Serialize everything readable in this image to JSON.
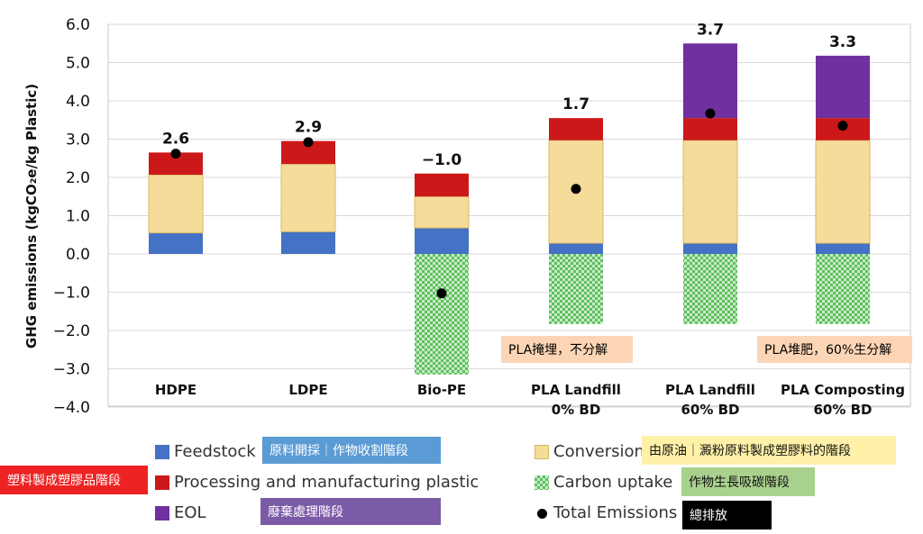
{
  "chart_data": {
    "type": "bar",
    "stacked": true,
    "ylabel": "GHG emissions (kgCO₂e/kg Plastic)",
    "ylim": [
      -4.0,
      6.0
    ],
    "yticks": [
      "6.0",
      "5.0",
      "4.0",
      "3.0",
      "2.0",
      "1.0",
      "0.0",
      "−1.0",
      "−2.0",
      "−3.0",
      "−4.0"
    ],
    "ytick_values": [
      6,
      5,
      4,
      3,
      2,
      1,
      0,
      -1,
      -2,
      -3,
      -4
    ],
    "grid": true,
    "categories": [
      [
        "HDPE"
      ],
      [
        "LDPE"
      ],
      [
        "Bio-PE"
      ],
      [
        "PLA Landfill",
        "0% BD"
      ],
      [
        "PLA Landfill",
        "60% BD"
      ],
      [
        "PLA Composting",
        "60% BD"
      ]
    ],
    "series": [
      {
        "name": "Feedstock",
        "color": "#4472c4",
        "values": [
          0.55,
          0.58,
          0.68,
          0.28,
          0.28,
          0.28
        ]
      },
      {
        "name": "Conversion",
        "color": "#f6dc9b",
        "values": [
          1.52,
          1.77,
          0.82,
          2.69,
          2.69,
          2.69
        ]
      },
      {
        "name": "Processing and manufacturing plastic",
        "color": "#cc1818",
        "values": [
          0.58,
          0.6,
          0.6,
          0.58,
          0.58,
          0.58
        ]
      },
      {
        "name": "EOL",
        "color": "#7030a0",
        "values": [
          0,
          0,
          0,
          0,
          1.95,
          1.63
        ]
      },
      {
        "name": "Carbon uptake",
        "color": "#5fbf5f",
        "pattern": "checker",
        "values": [
          0,
          0,
          -3.15,
          -1.83,
          -1.83,
          -1.83
        ]
      }
    ],
    "total_emissions": [
      2.62,
      2.92,
      -1.03,
      1.7,
      3.67,
      3.35
    ],
    "total_labels": [
      "2.6",
      "2.9",
      "−1.0",
      "1.7",
      "3.7",
      "3.3"
    ]
  },
  "legend": [
    {
      "name": "Feedstock",
      "icon": "blue-square",
      "color": "#4472c4"
    },
    {
      "name": "Processing and manufacturing plastic",
      "icon": "red-square",
      "color": "#cc1818"
    },
    {
      "name": "EOL",
      "icon": "purple-square",
      "color": "#7030a0"
    },
    {
      "name": "Conversion",
      "icon": "yellow-square",
      "color": "#f6dc9b"
    },
    {
      "name": "Carbon uptake",
      "icon": "green-checker-square",
      "color": "#5fbf5f"
    },
    {
      "name": "Total Emissions",
      "icon": "black-dot",
      "color": "#000000"
    }
  ],
  "notes": {
    "feedstock": "原料開採｜作物收割階段",
    "processing": "塑料製成塑膠品階段",
    "eol": "廢棄處理階段",
    "conversion": "由原油｜澱粉原料製成塑膠料的階段",
    "carbon_uptake": "作物生長吸碳階段",
    "total": "總排放",
    "pla_landfill": "PLA掩埋，不分解",
    "pla_compost": "PLA堆肥，60%生分解"
  },
  "colors": {
    "note_blue": "#5b9bd5",
    "note_red": "#ee2222",
    "note_purple": "#7b5aa6",
    "note_yellow": "#fff2a8",
    "note_green": "#a9d18e",
    "note_black": "#000000",
    "note_peach": "#fbd5b5"
  }
}
